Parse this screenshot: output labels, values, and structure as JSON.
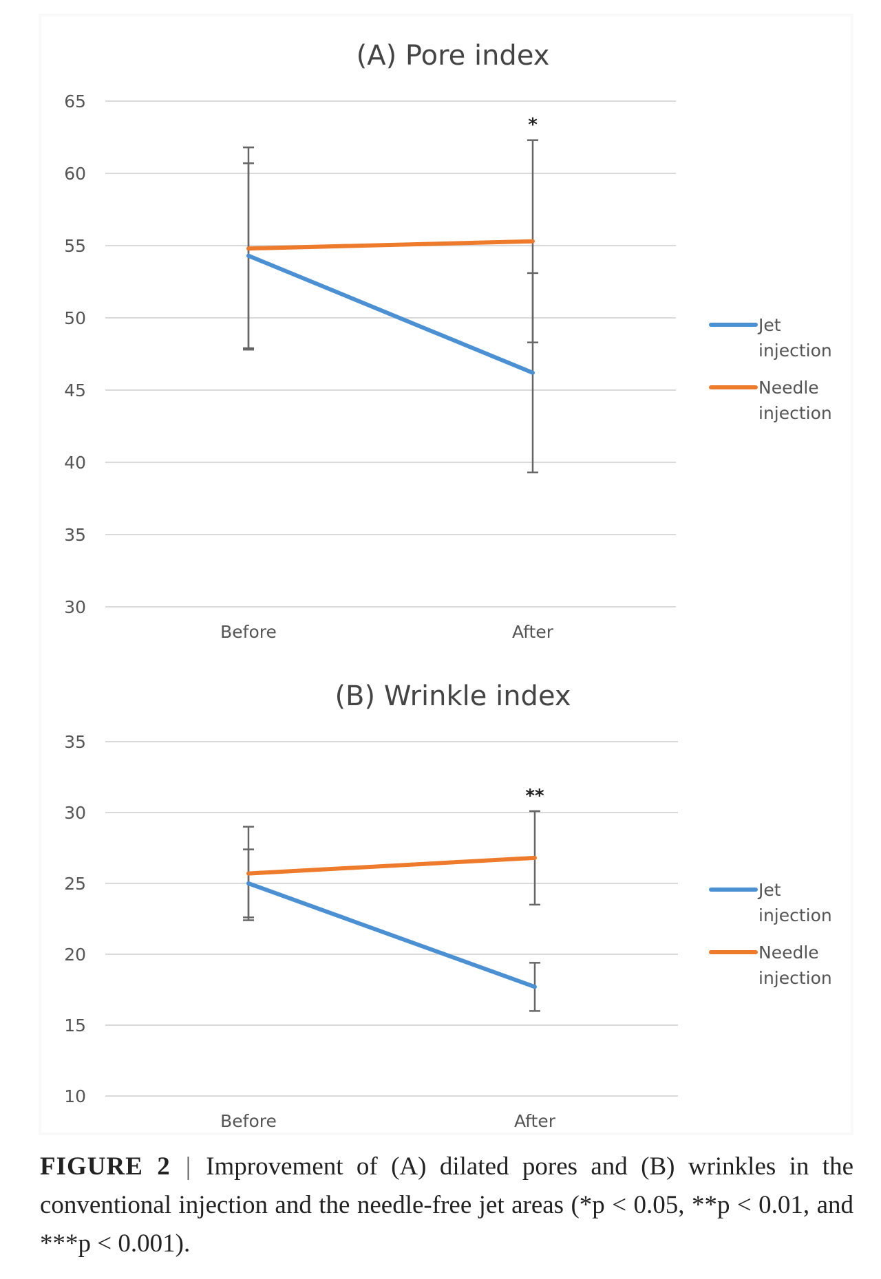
{
  "chart_data": [
    {
      "type": "line",
      "title": "(A) Pore index",
      "categories": [
        "Before",
        "After"
      ],
      "ylim": [
        30,
        65
      ],
      "yticks": [
        30,
        35,
        40,
        45,
        50,
        55,
        60,
        65
      ],
      "grid": true,
      "legend": "right",
      "series": [
        {
          "name": "Jet injection",
          "color": "#4a90d2",
          "values": [
            54.3,
            46.2
          ],
          "error": [
            6.4,
            6.9
          ]
        },
        {
          "name": "Needle injection",
          "color": "#ee7a2b",
          "values": [
            54.8,
            55.3
          ],
          "error": [
            7.0,
            7.0
          ]
        }
      ],
      "annotations": [
        {
          "category": "After",
          "text": "*"
        }
      ]
    },
    {
      "type": "line",
      "title": "(B) Wrinkle index",
      "categories": [
        "Before",
        "After"
      ],
      "ylim": [
        10,
        35
      ],
      "yticks": [
        10,
        15,
        20,
        25,
        30,
        35
      ],
      "grid": true,
      "legend": "right",
      "series": [
        {
          "name": "Jet injection",
          "color": "#4a90d2",
          "values": [
            25.0,
            17.7
          ],
          "error": [
            2.4,
            1.7
          ]
        },
        {
          "name": "Needle injection",
          "color": "#ee7a2b",
          "values": [
            25.7,
            26.8
          ],
          "error": [
            3.3,
            3.3
          ]
        }
      ],
      "annotations": [
        {
          "category": "After",
          "text": "**"
        }
      ]
    }
  ],
  "caption": {
    "label": "FIGURE 2",
    "separator": "|",
    "text": "Improvement of (A) dilated pores and (B) wrinkles in the conventional injection and the needle-free jet areas (*p < 0.05, **p < 0.01, and ***p < 0.001)."
  }
}
